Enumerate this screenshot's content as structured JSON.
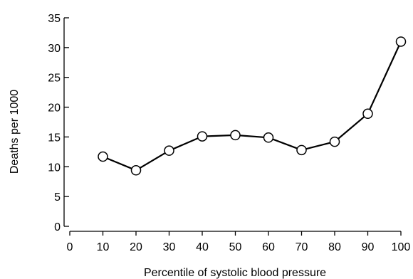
{
  "chart_data": {
    "type": "line",
    "xlabel": "Percentile of systolic blood pressure",
    "ylabel": "Deaths per 1000",
    "xlim": [
      0,
      100
    ],
    "ylim": [
      0,
      35
    ],
    "xticks": [
      0,
      10,
      20,
      30,
      40,
      50,
      60,
      70,
      80,
      90,
      100
    ],
    "yticks": [
      0,
      5,
      10,
      15,
      20,
      25,
      30,
      35
    ],
    "grid": false,
    "x": [
      10,
      20,
      30,
      40,
      50,
      60,
      70,
      80,
      90,
      100
    ],
    "y": [
      11.7,
      9.4,
      12.7,
      15.1,
      15.3,
      14.9,
      12.8,
      14.2,
      18.9,
      31.0
    ],
    "marker": "open-circle",
    "line_color": "#000000"
  }
}
